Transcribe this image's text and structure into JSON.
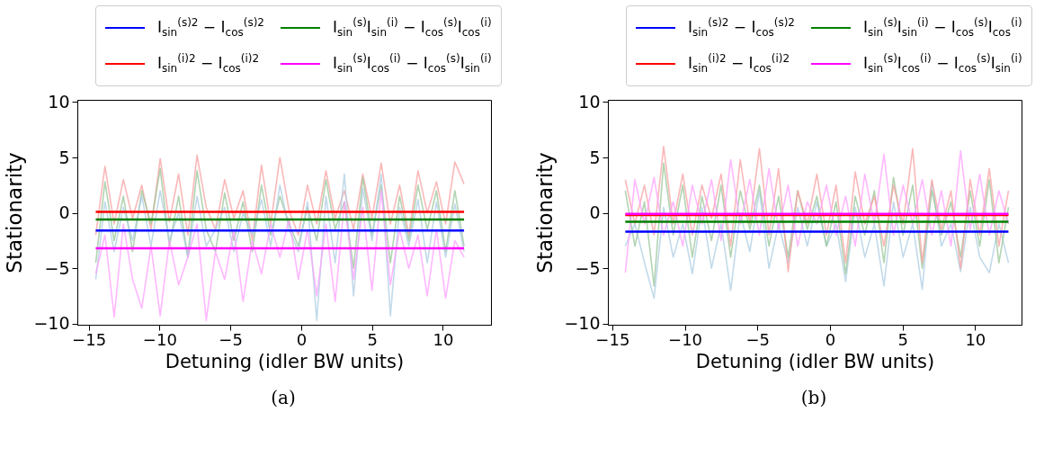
{
  "chart_data": [
    {
      "type": "line",
      "xlabel": "Detuning (idler BW units)",
      "ylabel": "Stationarity",
      "annotations": [
        "(a)"
      ],
      "legend": "top",
      "xlim": [
        -15.8,
        13.4
      ],
      "ylim": [
        -10.1,
        10.2
      ],
      "xticks": [
        -15,
        -10,
        -5,
        0,
        5,
        10
      ],
      "yticks": [
        -10,
        -5,
        0,
        5,
        10
      ],
      "x": [
        -14.5,
        -13.85,
        -13.2,
        -12.55,
        -11.9,
        -11.25,
        -10.6,
        -9.95,
        -9.3,
        -8.65,
        -8.0,
        -7.35,
        -6.7,
        -6.05,
        -5.4,
        -4.75,
        -4.1,
        -3.45,
        -2.8,
        -2.15,
        -1.5,
        -0.85,
        -0.2,
        0.45,
        1.1,
        1.75,
        2.4,
        3.05,
        3.7,
        4.35,
        5.0,
        5.65,
        6.3,
        6.95,
        7.6,
        8.25,
        8.9,
        9.55,
        10.2,
        10.85,
        11.5
      ],
      "series": [
        {
          "color": "#f8a0a0",
          "values": [
            -2,
            4.2,
            -1,
            3,
            -0.5,
            2.5,
            -1.5,
            4.9,
            -0.8,
            3.5,
            -2,
            5.2,
            0.5,
            -1.5,
            3,
            -0.5,
            2,
            -2.5,
            4.3,
            -1,
            5,
            0.2,
            -2,
            2.5,
            -1,
            3.8,
            -0.5,
            2,
            -1.5,
            3.5,
            -0.5,
            4.5,
            -1,
            2.5,
            -2,
            3.8,
            0,
            2.8,
            -1,
            4.6,
            2.6
          ]
        },
        {
          "color": "#98c698",
          "values": [
            -4.5,
            2.8,
            -2.5,
            1.5,
            -3.5,
            2,
            -1,
            4,
            -3,
            1.5,
            -4,
            3.8,
            -1.5,
            -3.5,
            1.8,
            -2.5,
            1,
            -3.5,
            2.5,
            -2,
            1.5,
            -1,
            -3,
            0.5,
            -2.5,
            3,
            -1.5,
            1,
            -5,
            3.2,
            -2,
            2.5,
            -4.5,
            1.5,
            -2.5,
            2.5,
            -1.5,
            2,
            -3.5,
            2,
            -3
          ]
        },
        {
          "color": "#aecde3",
          "values": [
            -6,
            1,
            -3.5,
            0.5,
            -2.5,
            1.5,
            -3,
            2,
            -2.5,
            0,
            -4,
            1.5,
            -3,
            -1.5,
            0.5,
            -3.5,
            0,
            -2,
            1.2,
            -3,
            2.5,
            -1.5,
            -3.5,
            1,
            -9.7,
            1.5,
            -4.5,
            3.5,
            -7.5,
            2.2,
            -2.5,
            3.5,
            -9.3,
            0.5,
            -3,
            1.2,
            -4.5,
            1,
            -4,
            0.8,
            -3.5
          ]
        },
        {
          "color": "#ffa0ff",
          "values": [
            -5.5,
            -2,
            -9.4,
            -1,
            -6,
            -8.6,
            -3,
            -9.3,
            -2.5,
            -6.5,
            -4,
            -1,
            -9.7,
            -3.5,
            -6,
            -1.5,
            -8,
            -2.5,
            -5.5,
            -1,
            -4,
            -0.5,
            -6,
            -1.5,
            -7.5,
            -1,
            -8,
            1,
            -6,
            0.5,
            -7,
            2,
            -6.5,
            -1.5,
            -5,
            -2,
            -7.5,
            -1.5,
            -7.7,
            -2.5,
            -4
          ]
        },
        {
          "name": "I$_{sin}$$^{(s)2}$ − I$_{cos}$$^{(s)2}$",
          "color": "#0000ff",
          "x": [
            -14.5,
            11.5
          ],
          "values": [
            -1.6,
            -1.6
          ]
        },
        {
          "name": "I$_{sin}$$^{(i)2}$ − I$_{cos}$$^{(i)2}$",
          "color": "#ff0000",
          "x": [
            -14.5,
            11.5
          ],
          "values": [
            0.1,
            0.1
          ]
        },
        {
          "name": "I$_{sin}$$^{(s)}$I$_{sin}$$^{(i)}$ − I$_{cos}$$^{(s)}$I$_{cos}$$^{(i)}$",
          "color": "#008000",
          "x": [
            -14.5,
            11.5
          ],
          "values": [
            -0.6,
            -0.6
          ]
        },
        {
          "name": "I$_{sin}$$^{(s)}$I$_{cos}$$^{(i)}$ − I$_{cos}$$^{(s)}$I$_{sin}$$^{(i)}$",
          "color": "#ff00ff",
          "x": [
            -14.5,
            11.5
          ],
          "values": [
            -3.2,
            -3.2
          ]
        }
      ]
    },
    {
      "type": "line",
      "xlabel": "Detuning (idler BW units)",
      "ylabel": "Stationarity",
      "annotations": [
        "(b)"
      ],
      "legend": "top",
      "xlim": [
        -15.3,
        13.2
      ],
      "ylim": [
        -10.1,
        10.2
      ],
      "xticks": [
        -15,
        -10,
        -5,
        0,
        5,
        10
      ],
      "yticks": [
        -10,
        -5,
        0,
        5,
        10
      ],
      "x": [
        -14.1,
        -13.44,
        -12.78,
        -12.12,
        -11.46,
        -10.8,
        -10.14,
        -9.48,
        -8.82,
        -8.16,
        -7.5,
        -6.84,
        -6.18,
        -5.52,
        -4.86,
        -4.2,
        -3.54,
        -2.88,
        -2.22,
        -1.56,
        -0.9,
        -0.24,
        0.42,
        1.08,
        1.74,
        2.4,
        3.06,
        3.72,
        4.38,
        5.04,
        5.7,
        6.36,
        7.02,
        7.68,
        8.34,
        9.0,
        9.66,
        10.32,
        10.98,
        11.64,
        12.3
      ],
      "series": [
        {
          "color": "#aecde3",
          "values": [
            -3,
            -1,
            -4.5,
            -7.7,
            0.5,
            -4,
            -1,
            -5.5,
            0.5,
            -5,
            -1,
            -7,
            0,
            -3.5,
            2,
            -5,
            -1,
            -4.5,
            0.5,
            -3,
            1,
            -3,
            -1,
            -6.2,
            0.5,
            -4,
            -1,
            -6.6,
            1,
            -4,
            -1,
            -6.9,
            2.8,
            -3,
            -1,
            -5.3,
            0.5,
            -4,
            -5.4,
            -1,
            -4.5
          ]
        },
        {
          "color": "#98c698",
          "values": [
            2,
            -3,
            1,
            -6.6,
            4.5,
            -2,
            2.5,
            -4,
            1.5,
            -2.5,
            2.5,
            -4,
            2,
            -1.5,
            2.5,
            -3,
            1.5,
            -4,
            2,
            -1.5,
            1.5,
            -3,
            1,
            -5.5,
            1.5,
            -2,
            2,
            -4.5,
            3.2,
            -2,
            2.5,
            -5,
            2,
            -2,
            1,
            -4,
            2,
            -3,
            3,
            -4.5,
            0.5
          ]
        },
        {
          "color": "#f8a0a0",
          "values": [
            3,
            -1,
            2.5,
            -2,
            6,
            -1,
            3.5,
            -2,
            2.5,
            -0.5,
            3.5,
            -3,
            4.8,
            -1,
            5.8,
            -2,
            4,
            -5.3,
            2,
            -1,
            3.5,
            -2,
            2.5,
            -4.5,
            3.7,
            -1,
            1.5,
            -3,
            2.5,
            -1,
            5.8,
            -4.5,
            3,
            -1.5,
            2,
            -5,
            3,
            -2,
            4,
            -3,
            2
          ]
        },
        {
          "color": "#ffa0ff",
          "values": [
            -5.4,
            3,
            -1,
            3.2,
            -2,
            1,
            -3,
            2.5,
            -1,
            3,
            -2.5,
            4.8,
            -1,
            3,
            -2,
            4,
            -1.5,
            2.5,
            -3,
            1,
            -1,
            2.5,
            -2,
            1.5,
            -3,
            3.5,
            -1,
            5.3,
            -2,
            2.5,
            -1,
            3,
            -2,
            2,
            -3,
            5.6,
            -1.5,
            3.5,
            -2,
            2,
            -1
          ]
        },
        {
          "name": "I$_{sin}$$^{(s)2}$ − I$_{cos}$$^{(s)2}$",
          "color": "#0000ff",
          "x": [
            -14.1,
            12.3
          ],
          "values": [
            -1.7,
            -1.7
          ]
        },
        {
          "name": "I$_{sin}$$^{(i)2}$ − I$_{cos}$$^{(i)2}$",
          "color": "#ff0000",
          "x": [
            -14.1,
            12.3
          ],
          "values": [
            -0.2,
            -0.2
          ]
        },
        {
          "name": "I$_{sin}$$^{(s)}$I$_{sin}$$^{(i)}$ − I$_{cos}$$^{(s)}$I$_{cos}$$^{(i)}$",
          "color": "#008000",
          "x": [
            -14.1,
            12.3
          ],
          "values": [
            -0.8,
            -0.8
          ]
        },
        {
          "name": "I$_{sin}$$^{(s)}$I$_{cos}$$^{(i)}$ − I$_{cos}$$^{(s)}$I$_{sin}$$^{(i)}$",
          "color": "#ff00ff",
          "x": [
            -14.1,
            12.3
          ],
          "values": [
            -0.1,
            -0.1
          ]
        }
      ]
    }
  ]
}
